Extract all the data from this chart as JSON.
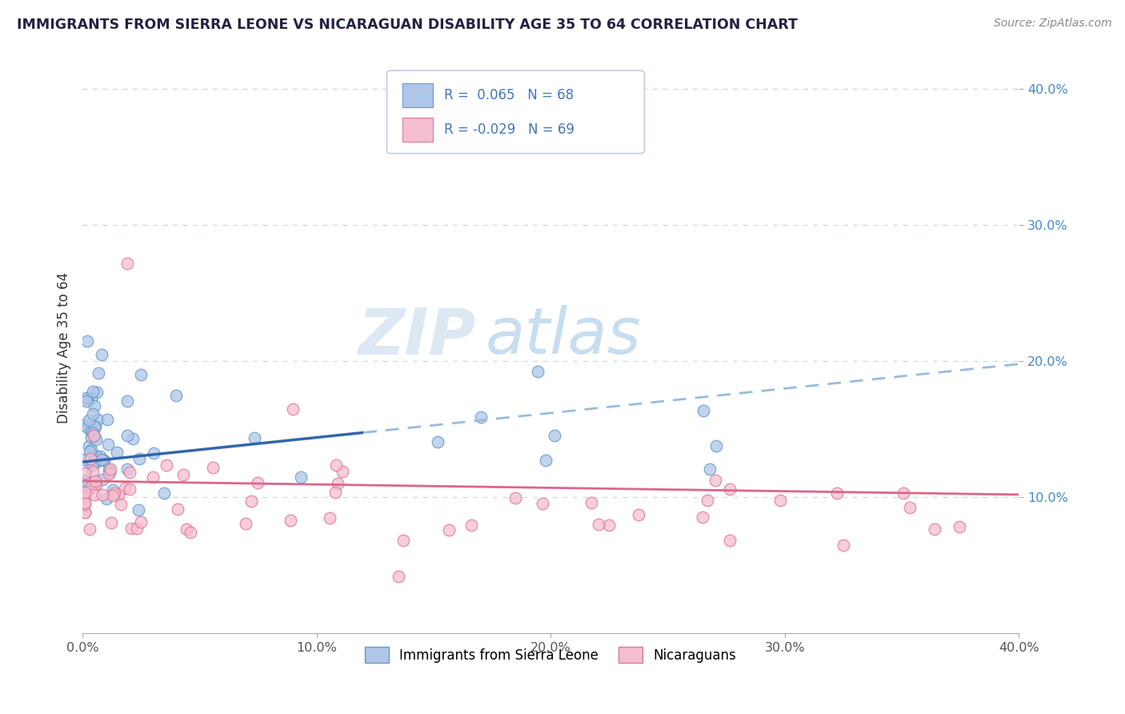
{
  "title": "IMMIGRANTS FROM SIERRA LEONE VS NICARAGUAN DISABILITY AGE 35 TO 64 CORRELATION CHART",
  "source_text": "Source: ZipAtlas.com",
  "ylabel": "Disability Age 35 to 64",
  "xlim": [
    0.0,
    0.4
  ],
  "ylim": [
    0.0,
    0.42
  ],
  "xtick_vals": [
    0.0,
    0.1,
    0.2,
    0.3,
    0.4
  ],
  "xtick_labels": [
    "0.0%",
    "10.0%",
    "20.0%",
    "30.0%",
    "40.0%"
  ],
  "ytick_vals": [
    0.1,
    0.2,
    0.3,
    0.4
  ],
  "ytick_labels": [
    "10.0%",
    "20.0%",
    "30.0%",
    "40.0%"
  ],
  "series1_label": "Immigrants from Sierra Leone",
  "series1_face_color": "#aec6e8",
  "series1_edge_color": "#6699cc",
  "series1_solid_color": "#3366aa",
  "series1_dash_color": "#99bbdd",
  "series1_R": 0.065,
  "series1_N": 68,
  "series2_label": "Nicaraguans",
  "series2_face_color": "#f5bece",
  "series2_edge_color": "#dd7799",
  "series2_line_color": "#dd6688",
  "series2_R": -0.029,
  "series2_N": 69,
  "legend_text_color": "#4477bb",
  "watermark_zip_color": "#dde8f5",
  "watermark_atlas_color": "#c8ddf0",
  "background_color": "#ffffff",
  "grid_color": "#c8d8ec",
  "title_color": "#222244",
  "ylabel_color": "#333333",
  "tick_label_color": "#555555",
  "ytick_label_color": "#4488cc",
  "source_color": "#888888"
}
